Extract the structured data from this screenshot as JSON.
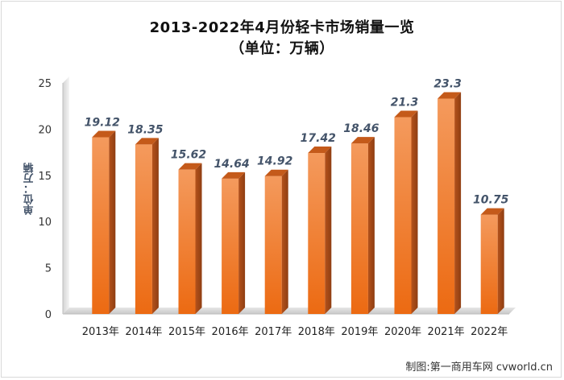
{
  "chart_data": {
    "type": "bar",
    "title": "2013-2022年4月份轻卡市场销量一览",
    "subtitle": "（单位：万辆）",
    "ylabel": "单位：万辆",
    "xlabel": "",
    "categories": [
      "2013年",
      "2014年",
      "2015年",
      "2016年",
      "2017年",
      "2018年",
      "2019年",
      "2020年",
      "2021年",
      "2022年"
    ],
    "values": [
      19.12,
      18.35,
      15.62,
      14.64,
      14.92,
      17.42,
      18.46,
      21.3,
      23.3,
      10.75
    ],
    "data_labels": [
      "19.12",
      "18.35",
      "15.62",
      "14.64",
      "14.92",
      "17.42",
      "18.46",
      "21.3",
      "23.3",
      "10.75"
    ],
    "yticks": [
      0,
      5,
      10,
      15,
      20,
      25
    ],
    "ylim": [
      0,
      25
    ],
    "grid": false,
    "legend": "none",
    "bar_color": "#ed7d31"
  },
  "credit": "制图:第一商用车网 cvworld.cn"
}
